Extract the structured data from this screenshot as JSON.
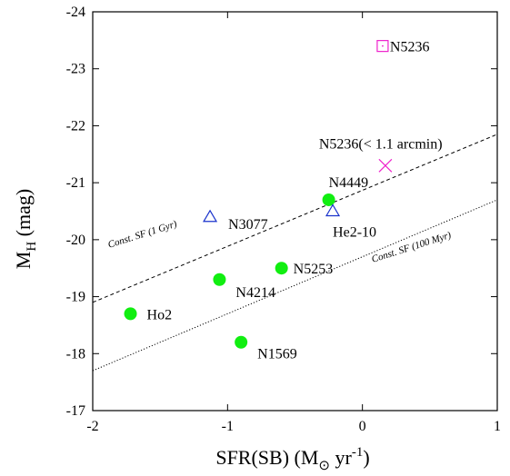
{
  "chart_data": {
    "type": "scatter",
    "xlabel": {
      "main": "SFR(SB) (M",
      "sub": "⊙",
      "unit": " yr",
      "sup": "-1",
      "close": ")"
    },
    "ylabel": {
      "main": "M",
      "sub": "H",
      "rest": " (mag)"
    },
    "xlim": [
      -2,
      1
    ],
    "ylim": [
      -17,
      -24
    ],
    "x_ticks": [
      -2,
      -1,
      0,
      1
    ],
    "x_tick_labels": [
      "-2",
      "-1",
      "0",
      "1"
    ],
    "y_ticks": [
      -17,
      -18,
      -19,
      -20,
      -21,
      -22,
      -23,
      -24
    ],
    "y_tick_labels": [
      "-17",
      "-18",
      "-19",
      "-20",
      "-21",
      "-22",
      "-23",
      "-24"
    ],
    "grid": false,
    "series": [
      {
        "marker": "filled-circle",
        "color": "#11ee11",
        "points": [
          {
            "label": "Ho2",
            "x": -1.72,
            "y": -18.7
          },
          {
            "label": "N1569",
            "x": -0.9,
            "y": -18.2
          },
          {
            "label": "N4214",
            "x": -1.06,
            "y": -19.3
          },
          {
            "label": "N5253",
            "x": -0.6,
            "y": -19.5
          },
          {
            "label": "N4449",
            "x": -0.25,
            "y": -20.7
          }
        ]
      },
      {
        "marker": "open-triangle",
        "color": "#1a33cc",
        "points": [
          {
            "label": "N3077",
            "x": -1.13,
            "y": -20.4
          },
          {
            "label": "He2-10",
            "x": -0.22,
            "y": -20.5
          }
        ]
      },
      {
        "marker": "open-square",
        "color": "#ee22cc",
        "points": [
          {
            "label": "N5236",
            "x": 0.15,
            "y": -23.4
          }
        ]
      },
      {
        "marker": "cross",
        "color": "#ee22cc",
        "points": [
          {
            "label": "N5236(< 1.1 arcmin)",
            "x": 0.17,
            "y": -21.3
          }
        ]
      }
    ],
    "lines": [
      {
        "label": "Const. SF (1 Gyr)",
        "style": "dashed",
        "x": [
          -2,
          1
        ],
        "y": [
          -18.9,
          -21.85
        ]
      },
      {
        "label": "Const. SF (100 Myr)",
        "style": "dotted",
        "x": [
          -2,
          1
        ],
        "y": [
          -17.7,
          -20.7
        ]
      }
    ]
  }
}
